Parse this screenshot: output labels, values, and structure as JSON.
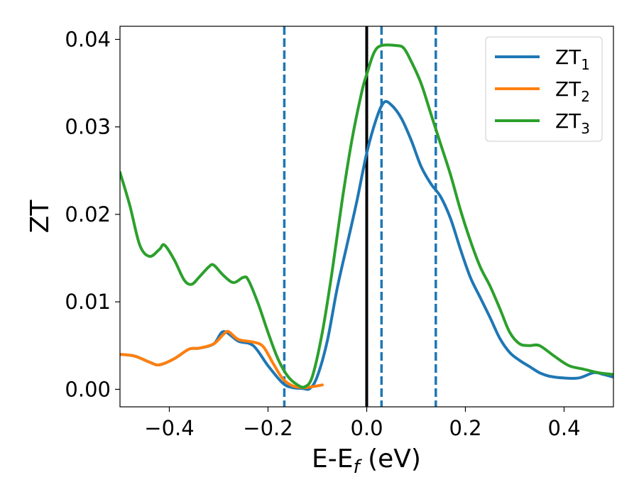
{
  "chart_data": {
    "type": "line",
    "title": "",
    "xlabel": "E-E",
    "xlabel_sub": "f",
    "xlabel_unit": " (eV)",
    "ylabel": "ZT",
    "xlim": [
      -0.5,
      0.5
    ],
    "ylim": [
      -0.002,
      0.0415
    ],
    "xticks": [
      -0.4,
      -0.2,
      0.0,
      0.2,
      0.4
    ],
    "xtick_labels": [
      "−0.4",
      "−0.2",
      "0.0",
      "0.2",
      "0.4"
    ],
    "yticks": [
      0.0,
      0.01,
      0.02,
      0.03,
      0.04
    ],
    "ytick_labels": [
      "0.00",
      "0.01",
      "0.02",
      "0.03",
      "0.04"
    ],
    "grid": false,
    "legend_position": "top-right",
    "vertical_lines": [
      {
        "x": -0.167,
        "style": "dashed",
        "color": "#1f77b4"
      },
      {
        "x": 0.0,
        "style": "solid",
        "color": "#000000"
      },
      {
        "x": 0.03,
        "style": "dashed",
        "color": "#1f77b4"
      },
      {
        "x": 0.14,
        "style": "dashed",
        "color": "#1f77b4"
      }
    ],
    "series": [
      {
        "name": "ZT",
        "name_sub": "1",
        "color": "#1f77b4",
        "x": [
          -0.5,
          -0.47,
          -0.44,
          -0.42,
          -0.39,
          -0.36,
          -0.34,
          -0.31,
          -0.29,
          -0.26,
          -0.23,
          -0.2,
          -0.17,
          -0.15,
          -0.13,
          -0.115,
          -0.1,
          -0.08,
          -0.06,
          -0.04,
          -0.02,
          0.0,
          0.02,
          0.035,
          0.05,
          0.07,
          0.09,
          0.11,
          0.13,
          0.15,
          0.17,
          0.19,
          0.21,
          0.23,
          0.25,
          0.27,
          0.29,
          0.31,
          0.33,
          0.35,
          0.37,
          0.4,
          0.43,
          0.46,
          0.48,
          0.5
        ],
        "y": [
          0.004,
          0.0038,
          0.0031,
          0.0028,
          0.0035,
          0.0046,
          0.0047,
          0.0052,
          0.0066,
          0.0055,
          0.005,
          0.0027,
          0.0007,
          0.0002,
          0.0001,
          0.0001,
          0.0015,
          0.0055,
          0.0115,
          0.0165,
          0.0215,
          0.027,
          0.031,
          0.0328,
          0.0325,
          0.031,
          0.0285,
          0.0255,
          0.0235,
          0.022,
          0.0195,
          0.016,
          0.0128,
          0.0105,
          0.0082,
          0.0058,
          0.0042,
          0.0033,
          0.0026,
          0.0019,
          0.0015,
          0.0013,
          0.0013,
          0.0019,
          0.0017,
          0.0014
        ]
      },
      {
        "name": "ZT",
        "name_sub": "2",
        "color": "#ff7f0e",
        "x": [
          -0.5,
          -0.47,
          -0.44,
          -0.42,
          -0.39,
          -0.36,
          -0.34,
          -0.31,
          -0.29,
          -0.28,
          -0.26,
          -0.23,
          -0.21,
          -0.19,
          -0.17,
          -0.15,
          -0.13,
          -0.11,
          -0.09
        ],
        "y": [
          0.004,
          0.0038,
          0.0031,
          0.0028,
          0.0035,
          0.0046,
          0.0047,
          0.0052,
          0.0063,
          0.0066,
          0.0057,
          0.0054,
          0.0049,
          0.003,
          0.0012,
          0.0004,
          0.0002,
          0.0003,
          0.0005
        ]
      },
      {
        "name": "ZT",
        "name_sub": "3",
        "color": "#2ca02c",
        "x": [
          -0.5,
          -0.48,
          -0.46,
          -0.44,
          -0.42,
          -0.41,
          -0.39,
          -0.37,
          -0.355,
          -0.34,
          -0.32,
          -0.31,
          -0.29,
          -0.27,
          -0.25,
          -0.24,
          -0.22,
          -0.2,
          -0.18,
          -0.16,
          -0.14,
          -0.125,
          -0.11,
          -0.09,
          -0.07,
          -0.05,
          -0.03,
          -0.01,
          0.0,
          0.015,
          0.03,
          0.06,
          0.075,
          0.09,
          0.11,
          0.13,
          0.15,
          0.17,
          0.19,
          0.21,
          0.23,
          0.25,
          0.27,
          0.29,
          0.31,
          0.33,
          0.35,
          0.38,
          0.41,
          0.44,
          0.47,
          0.5
        ],
        "y": [
          0.0248,
          0.021,
          0.0165,
          0.0152,
          0.016,
          0.0165,
          0.0148,
          0.0125,
          0.012,
          0.0128,
          0.014,
          0.0142,
          0.013,
          0.0122,
          0.0128,
          0.0125,
          0.0098,
          0.0065,
          0.0035,
          0.0015,
          0.0005,
          0.0003,
          0.0015,
          0.0065,
          0.0135,
          0.0215,
          0.0285,
          0.034,
          0.036,
          0.0385,
          0.0393,
          0.0393,
          0.039,
          0.0375,
          0.035,
          0.0315,
          0.028,
          0.0245,
          0.0205,
          0.017,
          0.014,
          0.0118,
          0.0092,
          0.0065,
          0.0052,
          0.005,
          0.005,
          0.0038,
          0.0027,
          0.0023,
          0.0019,
          0.0017
        ]
      }
    ]
  }
}
